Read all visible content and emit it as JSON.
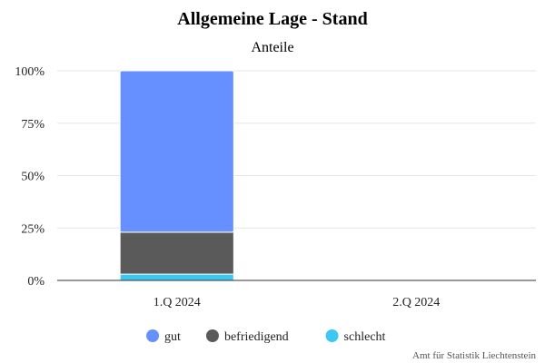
{
  "chart_data": {
    "type": "bar",
    "stacked": true,
    "title": "Allgemeine Lage - Stand",
    "subtitle": "Anteile",
    "categories": [
      "1.Q 2024",
      "2.Q 2024"
    ],
    "series": [
      {
        "name": "schlecht",
        "values": [
          3,
          0
        ],
        "color": "#3cc8f0"
      },
      {
        "name": "befriedigend",
        "values": [
          20,
          0
        ],
        "color": "#5a5a5a"
      },
      {
        "name": "gut",
        "values": [
          77,
          0
        ],
        "color": "#6690ff"
      }
    ],
    "legend_order": [
      "gut",
      "befriedigend",
      "schlecht"
    ],
    "yticks": [
      "0%",
      "25%",
      "50%",
      "75%",
      "100%"
    ],
    "ytick_values": [
      0,
      25,
      50,
      75,
      100
    ],
    "ylim": [
      0,
      100
    ],
    "grid": true,
    "legend_position": "bottom-center",
    "credit": "Amt für Statistik Liechtenstein"
  }
}
